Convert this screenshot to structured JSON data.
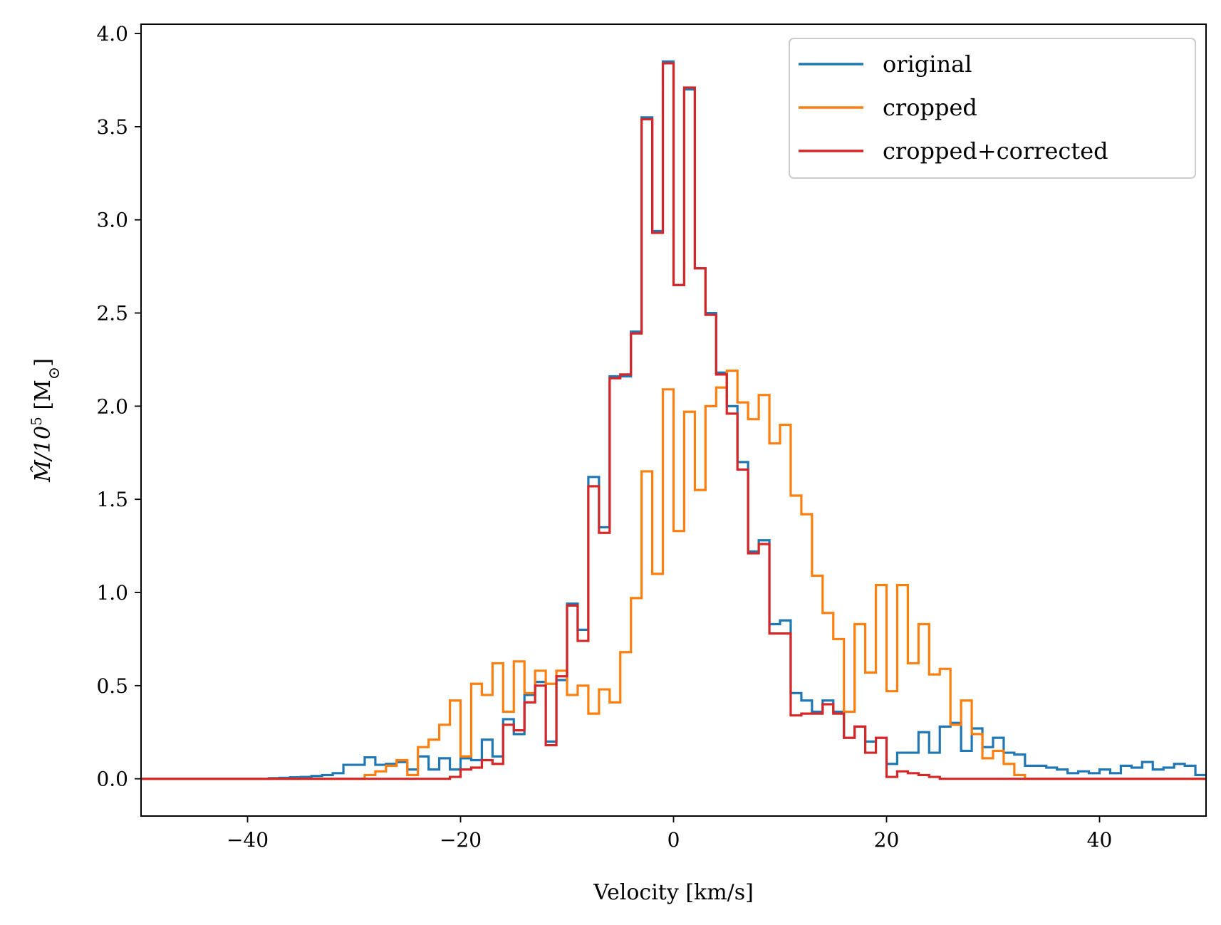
{
  "chart_data": {
    "type": "line",
    "drawstyle": "steps",
    "title": "",
    "xlabel": "Velocity [km/s]",
    "ylabel_main": "M̂/10",
    "ylabel_sup": "5",
    "ylabel_unit": " [M",
    "ylabel_sun": "⊙",
    "ylabel_close": "]",
    "xlim": [
      -50,
      50
    ],
    "ylim": [
      -0.2,
      4.05
    ],
    "xticks": [
      -40,
      -20,
      0,
      20,
      40
    ],
    "xtick_labels": [
      "−40",
      "−20",
      "0",
      "20",
      "40"
    ],
    "yticks": [
      0.0,
      0.5,
      1.0,
      1.5,
      2.0,
      2.5,
      3.0,
      3.5,
      4.0
    ],
    "ytick_labels": [
      "0.0",
      "0.5",
      "1.0",
      "1.5",
      "2.0",
      "2.5",
      "3.0",
      "3.5",
      "4.0"
    ],
    "grid": false,
    "legend_position": "top-right",
    "bin_start": -50,
    "bin_width": 1,
    "series": [
      {
        "name": "original",
        "color": "#1f77b4",
        "values": [
          0,
          0,
          0,
          0,
          0,
          0,
          0,
          0,
          0,
          0,
          0,
          0,
          0.003,
          0.005,
          0.008,
          0.01,
          0.015,
          0.02,
          0.03,
          0.075,
          0.075,
          0.115,
          0.075,
          0.08,
          0.09,
          0.05,
          0.12,
          0.05,
          0.11,
          0.05,
          0.11,
          0.1,
          0.21,
          0.12,
          0.32,
          0.24,
          0.45,
          0.52,
          0.2,
          0.53,
          0.94,
          0.8,
          1.62,
          1.35,
          2.16,
          2.16,
          2.4,
          3.55,
          2.94,
          3.85,
          2.65,
          3.7,
          2.74,
          2.5,
          2.18,
          2.0,
          1.7,
          1.22,
          1.28,
          0.83,
          0.85,
          0.46,
          0.42,
          0.36,
          0.42,
          0.36,
          0.22,
          0.28,
          0.2,
          0.22,
          0.08,
          0.14,
          0.14,
          0.25,
          0.14,
          0.28,
          0.3,
          0.15,
          0.27,
          0.17,
          0.22,
          0.14,
          0.13,
          0.07,
          0.07,
          0.06,
          0.05,
          0.03,
          0.04,
          0.03,
          0.05,
          0.03,
          0.07,
          0.06,
          0.09,
          0.05,
          0.06,
          0.08,
          0.07,
          0.02
        ]
      },
      {
        "name": "cropped",
        "color": "#ff7f0e",
        "values": [
          0,
          0,
          0,
          0,
          0,
          0,
          0,
          0,
          0,
          0,
          0,
          0,
          0,
          0,
          0,
          0,
          0,
          0,
          0,
          0,
          0,
          0.02,
          0.04,
          0.07,
          0.1,
          0.02,
          0.17,
          0.21,
          0.29,
          0.42,
          0.12,
          0.51,
          0.45,
          0.62,
          0.36,
          0.63,
          0.46,
          0.58,
          0.51,
          0.58,
          0.45,
          0.5,
          0.35,
          0.48,
          0.41,
          0.68,
          0.97,
          1.65,
          1.1,
          2.09,
          1.33,
          1.97,
          1.55,
          2.0,
          2.1,
          2.19,
          2.02,
          1.93,
          2.06,
          1.8,
          1.9,
          1.52,
          1.42,
          1.09,
          0.89,
          0.75,
          0.36,
          0.83,
          0.57,
          1.04,
          0.47,
          1.04,
          0.62,
          0.83,
          0.56,
          0.59,
          0.29,
          0.42,
          0.24,
          0.11,
          0.15,
          0.08,
          0.02,
          0,
          0,
          0,
          0,
          0,
          0,
          0,
          0,
          0,
          0,
          0,
          0,
          0,
          0,
          0,
          0,
          0
        ]
      },
      {
        "name": "cropped+corrected",
        "color": "#d62728",
        "values": [
          0,
          0,
          0,
          0,
          0,
          0,
          0,
          0,
          0,
          0,
          0,
          0,
          0,
          0,
          0,
          0,
          0,
          0,
          0,
          0,
          0,
          0,
          0,
          0,
          0,
          0,
          0,
          0,
          0,
          0.01,
          0.05,
          0.06,
          0.1,
          0.08,
          0.29,
          0.26,
          0.41,
          0.5,
          0.18,
          0.55,
          0.93,
          0.74,
          1.57,
          1.32,
          2.15,
          2.17,
          2.39,
          3.54,
          2.93,
          3.84,
          2.65,
          3.71,
          2.74,
          2.49,
          2.17,
          1.96,
          1.66,
          1.21,
          1.26,
          0.78,
          0.78,
          0.34,
          0.35,
          0.35,
          0.4,
          0.35,
          0.22,
          0.28,
          0.14,
          0.22,
          0.01,
          0.04,
          0.03,
          0.02,
          0.01,
          0,
          0,
          0,
          0,
          0,
          0,
          0,
          0,
          0,
          0,
          0,
          0,
          0,
          0,
          0,
          0,
          0,
          0,
          0,
          0,
          0,
          0,
          0,
          0,
          0
        ]
      }
    ]
  }
}
